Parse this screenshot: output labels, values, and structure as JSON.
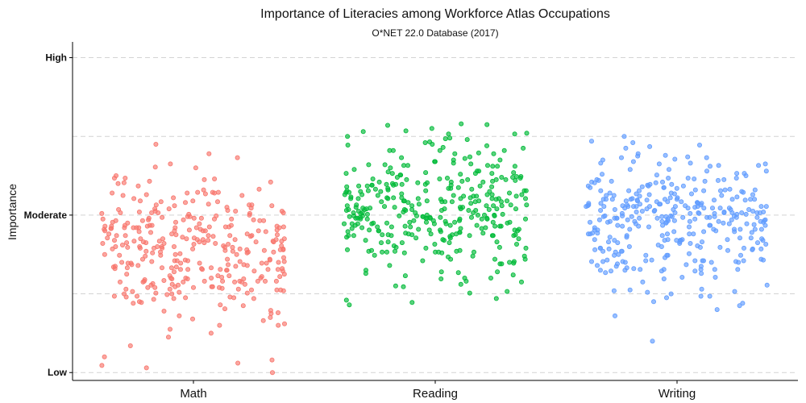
{
  "chart_data": {
    "type": "scatter",
    "title": "Importance of Literacies among Workforce Atlas Occupations",
    "subtitle": "O*NET 22.0 Database (2017)",
    "ylabel": "Importance",
    "xlabel": "",
    "y_ticks": [
      {
        "value": 1,
        "label": "Low"
      },
      {
        "value": 3,
        "label": "Moderate"
      },
      {
        "value": 5,
        "label": "High"
      }
    ],
    "ylim": [
      0.9,
      5.2
    ],
    "grid": true,
    "legend": "none",
    "jitter_width": 0.38,
    "categories": [
      "Math",
      "Reading",
      "Writing"
    ],
    "series": [
      {
        "category": "Math",
        "color": "#F8766D",
        "mean": 2.58,
        "sd": 0.38,
        "count": 330,
        "values": [
          1.0,
          1.06,
          1.09,
          1.12,
          1.16,
          1.2,
          1.34,
          1.45,
          1.5,
          1.55,
          1.62,
          1.72,
          1.88,
          2.0,
          3.12,
          3.28,
          3.45,
          3.6,
          3.78,
          3.9
        ]
      },
      {
        "category": "Reading",
        "color": "#00BA38",
        "mean": 3.03,
        "sd": 0.4,
        "count": 350,
        "values": [
          1.92,
          2.12,
          2.2,
          3.7,
          3.78,
          3.85,
          3.92,
          3.98,
          4.1
        ]
      },
      {
        "category": "Writing",
        "color": "#619CFF",
        "mean": 2.92,
        "sd": 0.42,
        "count": 340,
        "values": [
          1.4,
          1.72,
          1.8,
          1.88,
          1.95,
          2.0,
          3.7,
          3.78,
          3.85,
          3.92,
          4.0
        ]
      }
    ]
  }
}
